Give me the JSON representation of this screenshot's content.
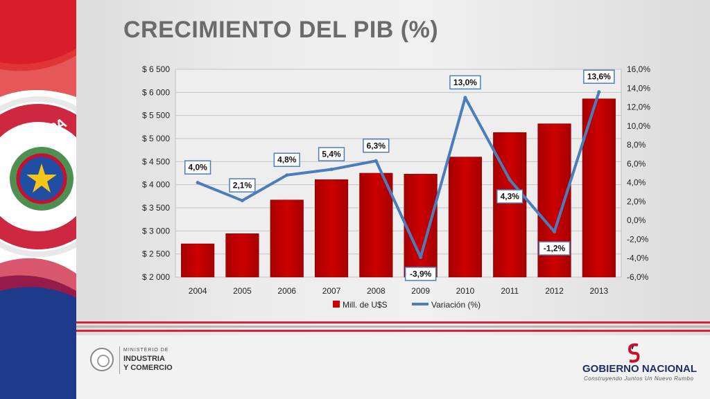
{
  "slide": {
    "title": "CRECIMIENTO DEL PIB (%)",
    "colors": {
      "bar": "#cc0000",
      "line": "#4a7ebb",
      "title": "#6b6b6b"
    }
  },
  "footer": {
    "ministry": {
      "line1": "MINISTERIO DE",
      "line2": "INDUSTRIA",
      "line3": "Y COMERCIO"
    },
    "government": {
      "name": "GOBIERNO NACIONAL",
      "slogan": "Construyendo Juntos Un Nuevo Rumbo"
    }
  },
  "flag_emblem_text": "ÚBLICA DEL PA",
  "chart_data": {
    "type": "bar",
    "categories": [
      "2004",
      "2005",
      "2006",
      "2007",
      "2008",
      "2009",
      "2010",
      "2011",
      "2012",
      "2013"
    ],
    "series": [
      {
        "name": "Mill. de U$S",
        "type": "bar",
        "axis": "left",
        "values": [
          2720,
          2940,
          3670,
          4110,
          4250,
          4230,
          4600,
          5130,
          5320,
          5860
        ]
      },
      {
        "name": "Variación (%)",
        "type": "line",
        "axis": "right",
        "values": [
          4.0,
          2.1,
          4.8,
          5.4,
          6.3,
          -3.9,
          13.0,
          4.3,
          -1.2,
          13.6
        ],
        "labels": [
          "4,0%",
          "2,1%",
          "4,8%",
          "5,4%",
          "6,3%",
          "-3,9%",
          "13,0%",
          "4,3%",
          "-1,2%",
          "13,6%"
        ]
      }
    ],
    "y_left": {
      "min": 2000,
      "max": 6500,
      "step": 500,
      "ticks": [
        "$ 2 000",
        "$ 2 500",
        "$ 3 000",
        "$ 3 500",
        "$ 4 000",
        "$ 4 500",
        "$ 5 000",
        "$ 5 500",
        "$ 6 000",
        "$ 6 500"
      ]
    },
    "y_right": {
      "min": -6,
      "max": 16,
      "step": 2,
      "ticks": [
        "-6,0%",
        "-4,0%",
        "-2,0%",
        "0,0%",
        "2,0%",
        "4,0%",
        "6,0%",
        "8,0%",
        "10,0%",
        "12,0%",
        "14,0%",
        "16,0%"
      ]
    },
    "grid": true,
    "legend": "bottom"
  }
}
